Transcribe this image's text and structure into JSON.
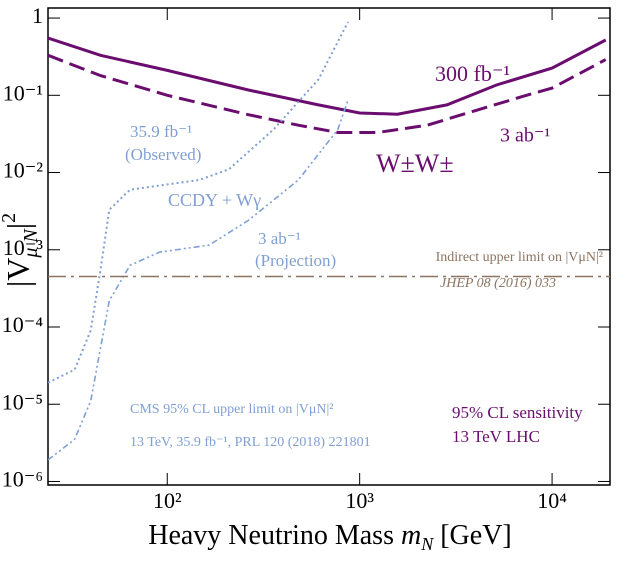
{
  "chart_data": {
    "type": "line",
    "xlog": true,
    "ylog": true,
    "xlim": [
      24,
      20000
    ],
    "ylim": [
      9e-07,
      1.35
    ],
    "xticks": [
      {
        "value": 100,
        "label": "10²"
      },
      {
        "value": 1000,
        "label": "10³"
      },
      {
        "value": 10000,
        "label": "10⁴"
      }
    ],
    "yticks": [
      {
        "value": 1e-06,
        "label": "10⁻⁶"
      },
      {
        "value": 1e-05,
        "label": "10⁻⁵"
      },
      {
        "value": 0.0001,
        "label": "10⁻⁴"
      },
      {
        "value": 0.001,
        "label": "10⁻³"
      },
      {
        "value": 0.01,
        "label": "10⁻²"
      },
      {
        "value": 0.1,
        "label": "10⁻¹"
      },
      1
    ],
    "x_label": [
      "Heavy Neutrino Mass ",
      "m",
      "N",
      " [GeV]"
    ],
    "y_label": [
      "|V",
      "μ N",
      "|",
      "2"
    ],
    "series": [
      {
        "name": "300 fb⁻¹",
        "color": "#6a0d6f",
        "dash": "solid",
        "x": [
          24,
          45,
          100,
          264,
          610,
          1000,
          1570,
          2840,
          5140,
          10000,
          19000
        ],
        "values": [
          0.55,
          0.33,
          0.21,
          0.117,
          0.075,
          0.059,
          0.057,
          0.075,
          0.136,
          0.225,
          0.52
        ]
      },
      {
        "name": "3 ab⁻¹",
        "color": "#6a0d6f",
        "dash": "dashed",
        "x": [
          24,
          45,
          100,
          264,
          480,
          770,
          1240,
          2240,
          4050,
          7360,
          10000,
          19000
        ],
        "values": [
          0.33,
          0.18,
          0.1,
          0.056,
          0.041,
          0.033,
          0.033,
          0.041,
          0.064,
          0.1,
          0.124,
          0.29
        ]
      },
      {
        "name": "35.9 fb⁻¹",
        "color": "#7f9fd4",
        "dash": "dotted",
        "x": [
          24,
          33,
          40,
          45,
          50,
          64,
          146,
          209,
          356,
          610,
          870
        ],
        "values": [
          1.9e-05,
          2.8e-05,
          9e-05,
          0.00055,
          0.0033,
          0.006,
          0.008,
          0.011,
          0.036,
          0.16,
          0.89
        ]
      },
      {
        "name": "3 ab⁻¹",
        "color": "#7f9fd4",
        "dash": "dashdotdot",
        "x": [
          24,
          33,
          40,
          50,
          64,
          91,
          165,
          264,
          480,
          770,
          870
        ],
        "values": [
          1.9e-06,
          3.5e-06,
          1.1e-05,
          0.00022,
          0.00063,
          0.00093,
          0.00115,
          0.0024,
          0.008,
          0.036,
          0.087
        ]
      },
      {
        "name": "Indirect upper limit on |VμN|²",
        "color": "#8c7461",
        "dash": "dashdot",
        "x": [
          24,
          20000
        ],
        "values": [
          0.00045,
          0.00045
        ]
      }
    ],
    "annotations": [
      "W±W±",
      "(Observed)",
      "CCDY + Wγ",
      "(Projection)",
      "JHEP 08 (2016) 033",
      "CMS 95% CL upper limit on |VμN|²",
      "13 TeV, 35.9 fb⁻¹, PRL 120 (2018) 221801",
      "95% CL sensitivity",
      "13 TeV LHC"
    ]
  }
}
